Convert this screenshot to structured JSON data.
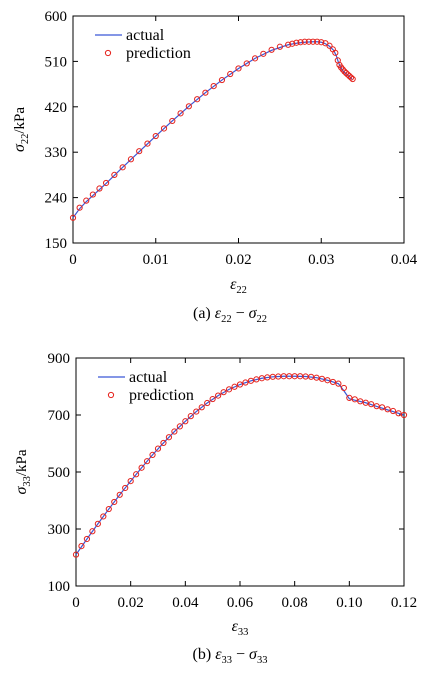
{
  "chart_data": [
    {
      "type": "line",
      "ylabel": {
        "symbol": "σ",
        "sub": "22",
        "unit": "/kPa"
      },
      "xlabel": {
        "symbol": "ε",
        "sub": "22"
      },
      "caption": {
        "prefix": "(a) ",
        "a": "ε",
        "a_sub": "22",
        "op": " − ",
        "b": "σ",
        "b_sub": "22"
      },
      "xlim": [
        0,
        0.04
      ],
      "ylim": [
        150,
        600
      ],
      "xticks": [
        0,
        0.01,
        0.02,
        0.03,
        0.04
      ],
      "xtick_labels": [
        "0",
        "0.01",
        "0.02",
        "0.03",
        "0.04"
      ],
      "yticks": [
        150,
        240,
        330,
        420,
        510,
        600
      ],
      "ytick_labels": [
        "150",
        "240",
        "330",
        "420",
        "510",
        "600"
      ],
      "legend": {
        "position": "top-left",
        "line_label": "actual",
        "marker_label": "prediction"
      },
      "series": [
        {
          "name": "actual",
          "style": "line",
          "color": "#3b57d6",
          "x": [
            0,
            0.0008,
            0.0016,
            0.0024,
            0.0032,
            0.004,
            0.006,
            0.008,
            0.01,
            0.012,
            0.014,
            0.016,
            0.018,
            0.02,
            0.022,
            0.024,
            0.026,
            0.027,
            0.028,
            0.029,
            0.0295,
            0.03,
            0.0305,
            0.031,
            0.0315,
            0.0318,
            0.0321,
            0.0323,
            0.0325,
            0.0328,
            0.0331,
            0.0334,
            0.0337
          ],
          "y": [
            200,
            218,
            232,
            244,
            256,
            268,
            300,
            331,
            362,
            392,
            421,
            448,
            473,
            496,
            516,
            532,
            543,
            546,
            548,
            549,
            549,
            548,
            545,
            540,
            532,
            522,
            507,
            500,
            494,
            488,
            484,
            480,
            475
          ]
        },
        {
          "name": "prediction",
          "style": "marker",
          "color": "#e5221c",
          "x": [
            0,
            0.0008,
            0.0016,
            0.0024,
            0.0032,
            0.004,
            0.005,
            0.006,
            0.007,
            0.008,
            0.009,
            0.01,
            0.011,
            0.012,
            0.013,
            0.014,
            0.015,
            0.016,
            0.017,
            0.018,
            0.019,
            0.02,
            0.021,
            0.022,
            0.023,
            0.024,
            0.025,
            0.026,
            0.0265,
            0.027,
            0.0275,
            0.028,
            0.0285,
            0.029,
            0.0295,
            0.03,
            0.0305,
            0.031,
            0.0314,
            0.0317,
            0.032,
            0.0322,
            0.0324,
            0.0326,
            0.0328,
            0.033,
            0.0332,
            0.0334,
            0.0336,
            0.0338
          ],
          "y": [
            200,
            220,
            234,
            246,
            258,
            269,
            285,
            300,
            316,
            332,
            347,
            362,
            377,
            392,
            407,
            421,
            435,
            448,
            461,
            473,
            485,
            496,
            506,
            516,
            525,
            533,
            539,
            543,
            545,
            547,
            548,
            549,
            549,
            549,
            549,
            548,
            546,
            541,
            534,
            527,
            512,
            503,
            498,
            494,
            490,
            487,
            484,
            481,
            478,
            475
          ]
        }
      ]
    },
    {
      "type": "line",
      "ylabel": {
        "symbol": "σ",
        "sub": "33",
        "unit": "/kPa"
      },
      "xlabel": {
        "symbol": "ε",
        "sub": "33"
      },
      "caption": {
        "prefix": "(b) ",
        "a": "ε",
        "a_sub": "33",
        "op": " − ",
        "b": "σ",
        "b_sub": "33"
      },
      "xlim": [
        0,
        0.12
      ],
      "ylim": [
        100,
        900
      ],
      "xticks": [
        0,
        0.02,
        0.04,
        0.06,
        0.08,
        0.1,
        0.12
      ],
      "xtick_labels": [
        "0",
        "0.02",
        "0.04",
        "0.06",
        "0.08",
        "0.10",
        "0.12"
      ],
      "yticks": [
        100,
        300,
        500,
        700,
        900
      ],
      "ytick_labels": [
        "100",
        "300",
        "500",
        "700",
        "900"
      ],
      "legend": {
        "position": "top-left",
        "line_label": "actual",
        "marker_label": "prediction"
      },
      "series": [
        {
          "name": "actual",
          "style": "line",
          "color": "#3b57d6",
          "x": [
            0,
            0.004,
            0.008,
            0.012,
            0.016,
            0.02,
            0.024,
            0.028,
            0.032,
            0.036,
            0.04,
            0.044,
            0.048,
            0.052,
            0.056,
            0.06,
            0.064,
            0.068,
            0.072,
            0.076,
            0.08,
            0.084,
            0.088,
            0.092,
            0.096,
            0.098,
            0.1,
            0.102,
            0.106,
            0.11,
            0.114,
            0.118,
            0.12
          ],
          "y": [
            210,
            265,
            318,
            370,
            420,
            468,
            515,
            560,
            602,
            642,
            678,
            712,
            742,
            768,
            790,
            807,
            820,
            829,
            834,
            836,
            836,
            835,
            831,
            822,
            810,
            785,
            757,
            752,
            743,
            730,
            718,
            706,
            700
          ]
        },
        {
          "name": "prediction",
          "style": "marker",
          "color": "#e5221c",
          "x": [
            0,
            0.002,
            0.004,
            0.006,
            0.008,
            0.01,
            0.012,
            0.014,
            0.016,
            0.018,
            0.02,
            0.022,
            0.024,
            0.026,
            0.028,
            0.03,
            0.032,
            0.034,
            0.036,
            0.038,
            0.04,
            0.042,
            0.044,
            0.046,
            0.048,
            0.05,
            0.052,
            0.054,
            0.056,
            0.058,
            0.06,
            0.062,
            0.064,
            0.066,
            0.068,
            0.07,
            0.072,
            0.074,
            0.076,
            0.078,
            0.08,
            0.082,
            0.084,
            0.086,
            0.088,
            0.09,
            0.092,
            0.094,
            0.096,
            0.098,
            0.1,
            0.102,
            0.104,
            0.106,
            0.108,
            0.11,
            0.112,
            0.114,
            0.116,
            0.118,
            0.12
          ],
          "y": [
            210,
            240,
            265,
            292,
            318,
            344,
            370,
            395,
            420,
            444,
            468,
            492,
            515,
            538,
            560,
            582,
            602,
            622,
            642,
            660,
            678,
            696,
            712,
            727,
            742,
            756,
            768,
            780,
            790,
            799,
            807,
            814,
            820,
            825,
            829,
            832,
            834,
            835,
            836,
            836,
            836,
            836,
            835,
            834,
            831,
            827,
            822,
            816,
            810,
            795,
            760,
            755,
            748,
            743,
            738,
            731,
            727,
            720,
            714,
            706,
            700
          ]
        }
      ]
    }
  ]
}
